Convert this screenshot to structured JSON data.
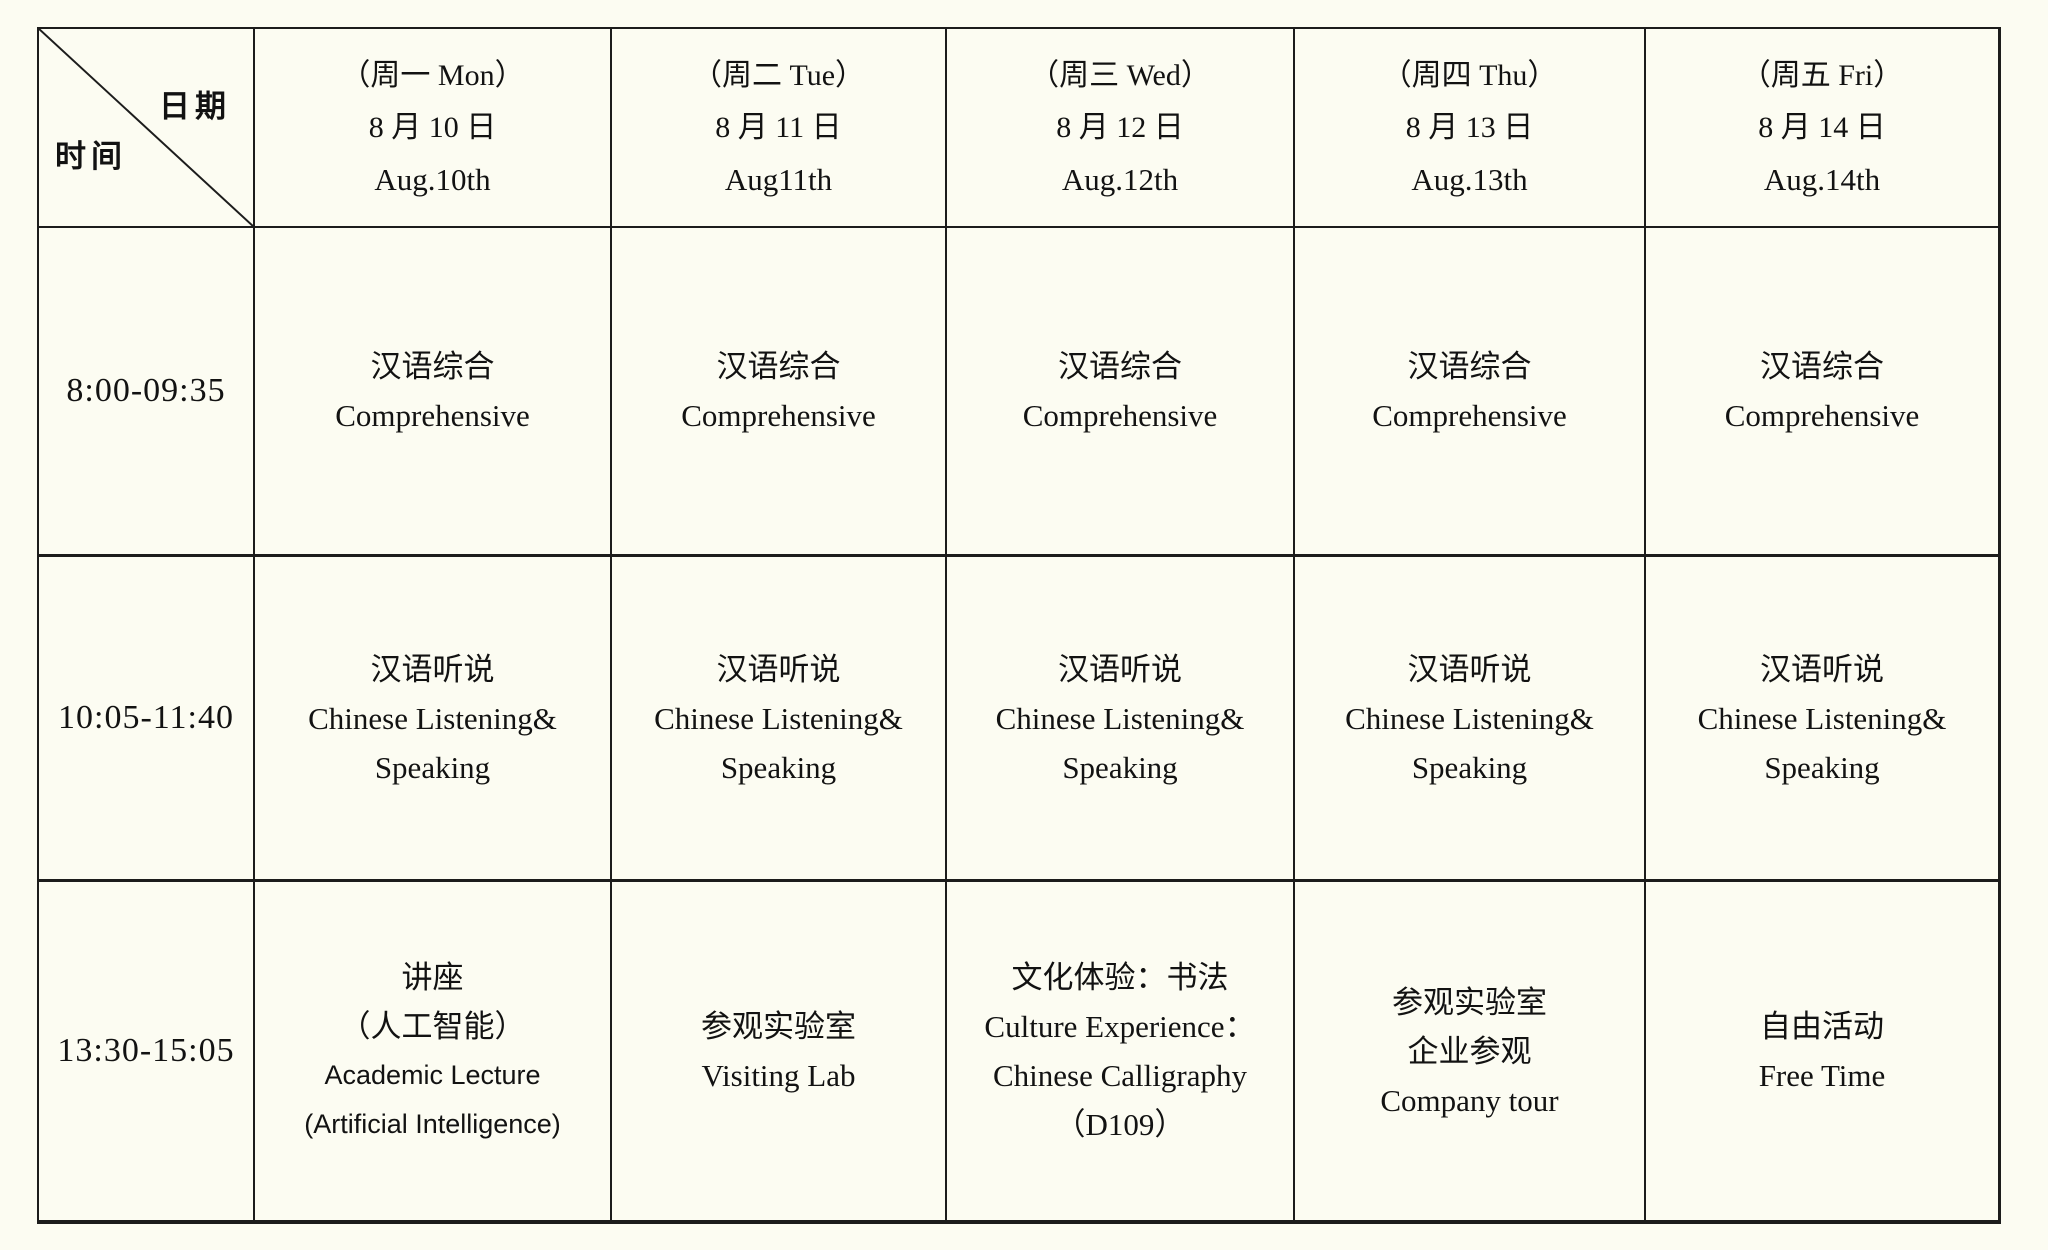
{
  "page": {
    "background_color": "#FCFCF2",
    "line_color": "#1C1C1C",
    "text_color": "#121212"
  },
  "table": {
    "corner": {
      "date_label": "日期",
      "time_label": "时间"
    },
    "columns": [
      {
        "week": "（周一 Mon）",
        "date_cn": "8 月 10 日",
        "date_en": "Aug.10th"
      },
      {
        "week": "（周二 Tue）",
        "date_cn": "8 月 11 日",
        "date_en": "Aug11th"
      },
      {
        "week": "（周三 Wed）",
        "date_cn": "8 月 12 日",
        "date_en": "Aug.12th"
      },
      {
        "week": "（周四 Thu）",
        "date_cn": "8 月 13 日",
        "date_en": "Aug.13th"
      },
      {
        "week": "（周五 Fri）",
        "date_cn": "8 月 14 日",
        "date_en": "Aug.14th"
      }
    ],
    "rows": [
      {
        "time": "8:00-09:35",
        "cells": [
          {
            "lines": [
              "汉语综合",
              "Comprehensive"
            ]
          },
          {
            "lines": [
              "汉语综合",
              "Comprehensive"
            ]
          },
          {
            "lines": [
              "汉语综合",
              "Comprehensive"
            ]
          },
          {
            "lines": [
              "汉语综合",
              "Comprehensive"
            ]
          },
          {
            "lines": [
              "汉语综合",
              "Comprehensive"
            ]
          }
        ]
      },
      {
        "time": "10:05-11:40",
        "cells": [
          {
            "lines": [
              "汉语听说",
              "Chinese Listening&",
              "Speaking"
            ]
          },
          {
            "lines": [
              "汉语听说",
              "Chinese Listening&",
              "Speaking"
            ]
          },
          {
            "lines": [
              "汉语听说",
              "Chinese Listening&",
              "Speaking"
            ]
          },
          {
            "lines": [
              "汉语听说",
              "Chinese Listening&",
              "Speaking"
            ]
          },
          {
            "lines": [
              "汉语听说",
              "Chinese Listening&",
              "Speaking"
            ]
          }
        ]
      },
      {
        "time": "13:30-15:05",
        "cells": [
          {
            "lines": [
              "讲座",
              "（人工智能）",
              {
                "text": "Academic Lecture",
                "style": "sans"
              },
              {
                "text": "(Artificial Intelligence)",
                "style": "sans"
              }
            ]
          },
          {
            "lines": [
              "参观实验室",
              "Visiting Lab"
            ]
          },
          {
            "lines": [
              "文化体验：书法",
              "Culture Experience：",
              "Chinese Calligraphy",
              "（D109）"
            ]
          },
          {
            "lines": [
              "参观实验室",
              "企业参观",
              "Company tour"
            ]
          },
          {
            "lines": [
              "自由活动",
              "Free Time"
            ]
          }
        ]
      }
    ]
  }
}
